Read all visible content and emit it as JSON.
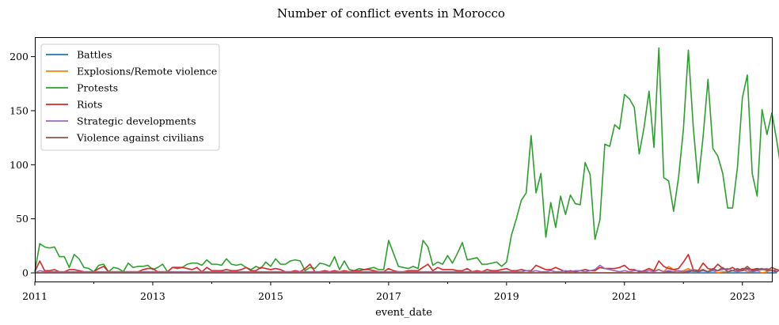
{
  "chart_data": {
    "type": "line",
    "title": "Number of conflict events in Morocco",
    "xlabel": "event_date",
    "ylabel": "",
    "x_start": "2011-01",
    "x_end": "2023-07",
    "xlim": [
      "2011-01",
      "2023-07"
    ],
    "ylim": [
      -8,
      218
    ],
    "xticks": [
      "2011",
      "2013",
      "2015",
      "2017",
      "2019",
      "2021",
      "2023"
    ],
    "yticks": [
      0,
      50,
      100,
      150,
      200
    ],
    "grid": false,
    "legend": "top-left",
    "series": [
      {
        "name": "Battles",
        "color": "#1f77b4",
        "values": [
          0,
          0,
          0,
          0,
          0,
          0,
          0,
          0,
          0,
          0,
          0,
          0,
          0,
          0,
          0,
          0,
          0,
          0,
          0,
          0,
          0,
          0,
          0,
          0,
          0,
          0,
          0,
          0,
          0,
          0,
          0,
          0,
          0,
          0,
          0,
          0,
          0,
          0,
          0,
          0,
          0,
          0,
          0,
          0,
          0,
          0,
          0,
          0,
          0,
          0,
          0,
          0,
          0,
          0,
          0,
          0,
          0,
          0,
          0,
          0,
          0,
          0,
          0,
          0,
          0,
          0,
          0,
          0,
          0,
          0,
          0,
          0,
          0,
          0,
          0,
          0,
          0,
          0,
          0,
          0,
          0,
          0,
          0,
          0,
          0,
          0,
          0,
          0,
          0,
          0,
          0,
          0,
          0,
          0,
          0,
          0,
          0,
          0,
          0,
          0,
          0,
          0,
          0,
          0,
          0,
          0,
          0,
          0,
          0,
          0,
          0,
          0,
          0,
          0,
          0,
          0,
          0,
          0,
          0,
          0,
          0,
          0,
          0,
          0,
          1,
          0,
          0,
          0,
          0,
          0,
          0,
          0,
          0,
          0,
          0,
          0,
          0,
          0,
          0,
          0,
          0,
          0,
          0,
          0,
          0,
          0,
          0,
          0,
          0,
          0,
          0,
          0
        ]
      },
      {
        "name": "Explosions/Remote violence",
        "color": "#ff7f0e",
        "values": [
          0,
          0,
          0,
          0,
          0,
          0,
          0,
          0,
          0,
          0,
          0,
          0,
          0,
          0,
          0,
          0,
          0,
          0,
          0,
          0,
          0,
          0,
          0,
          0,
          0,
          0,
          0,
          0,
          0,
          0,
          0,
          0,
          0,
          0,
          0,
          0,
          0,
          0,
          0,
          0,
          0,
          0,
          0,
          0,
          0,
          0,
          0,
          0,
          0,
          0,
          0,
          0,
          0,
          0,
          0,
          0,
          0,
          0,
          0,
          0,
          0,
          0,
          0,
          0,
          0,
          0,
          0,
          0,
          0,
          0,
          0,
          0,
          0,
          0,
          0,
          0,
          0,
          0,
          0,
          0,
          0,
          0,
          0,
          0,
          0,
          0,
          0,
          0,
          0,
          0,
          0,
          0,
          0,
          0,
          0,
          0,
          0,
          0,
          0,
          0,
          0,
          0,
          0,
          0,
          0,
          0,
          0,
          0,
          0,
          0,
          0,
          0,
          0,
          0,
          0,
          0,
          0,
          0,
          0,
          0,
          0,
          0,
          0,
          0,
          2,
          4,
          2,
          3,
          1,
          6,
          3,
          1,
          2,
          4,
          1,
          2,
          3,
          1,
          2,
          0,
          1,
          1,
          2,
          1,
          3,
          1,
          1,
          2,
          0,
          1,
          3,
          1
        ]
      },
      {
        "name": "Protests",
        "color": "#2ca02c",
        "values": [
          1,
          27,
          24,
          23,
          24,
          15,
          15,
          5,
          17,
          13,
          5,
          4,
          1,
          7,
          8,
          1,
          5,
          4,
          1,
          9,
          5,
          6,
          6,
          7,
          3,
          5,
          8,
          1,
          5,
          4,
          5,
          8,
          9,
          9,
          7,
          12,
          8,
          8,
          7,
          13,
          8,
          7,
          8,
          5,
          3,
          6,
          4,
          10,
          6,
          13,
          8,
          8,
          11,
          12,
          11,
          2,
          5,
          4,
          9,
          8,
          6,
          15,
          3,
          11,
          3,
          2,
          4,
          3,
          4,
          5,
          3,
          3,
          30,
          18,
          6,
          5,
          4,
          6,
          4,
          30,
          24,
          7,
          10,
          8,
          16,
          9,
          18,
          28,
          12,
          13,
          14,
          8,
          8,
          9,
          10,
          6,
          10,
          35,
          50,
          67,
          74,
          127,
          74,
          92,
          33,
          65,
          42,
          71,
          54,
          72,
          64,
          63,
          102,
          91,
          31,
          49,
          119,
          117,
          137,
          133,
          165,
          161,
          153,
          110,
          135,
          168,
          116,
          208,
          88,
          85,
          57,
          88,
          133,
          206,
          135,
          83,
          126,
          179,
          115,
          108,
          92,
          60,
          60,
          98,
          162,
          183,
          92,
          71,
          151,
          128,
          148,
          122,
          92,
          57,
          7
        ]
      },
      {
        "name": "Riots",
        "color": "#d62728",
        "values": [
          1,
          11,
          2,
          2,
          3,
          1,
          1,
          3,
          3,
          2,
          1,
          1,
          1,
          4,
          6,
          1,
          1,
          1,
          1,
          1,
          1,
          1,
          3,
          4,
          4,
          1,
          1,
          1,
          5,
          5,
          5,
          4,
          3,
          5,
          1,
          5,
          2,
          2,
          2,
          3,
          2,
          2,
          3,
          5,
          2,
          2,
          5,
          4,
          3,
          4,
          3,
          1,
          1,
          2,
          1,
          4,
          8,
          1,
          1,
          2,
          1,
          2,
          1,
          2,
          1,
          2,
          2,
          3,
          3,
          2,
          1,
          1,
          4,
          2,
          1,
          1,
          2,
          2,
          2,
          5,
          8,
          2,
          5,
          3,
          3,
          3,
          2,
          2,
          4,
          1,
          2,
          1,
          3,
          2,
          2,
          3,
          4,
          2,
          2,
          3,
          2,
          2,
          7,
          5,
          3,
          3,
          5,
          3,
          1,
          2,
          1,
          2,
          3,
          2,
          2,
          5,
          4,
          4,
          4,
          5,
          7,
          3,
          3,
          1,
          2,
          4,
          2,
          11,
          6,
          4,
          3,
          4,
          10,
          17,
          3,
          2,
          9,
          4,
          3,
          8,
          4,
          3,
          5,
          2,
          4,
          4,
          3,
          4,
          3,
          3,
          2,
          1,
          4,
          3,
          4,
          2,
          3
        ]
      },
      {
        "name": "Strategic developments",
        "color": "#9467bd",
        "values": [
          0,
          2,
          1,
          1,
          1,
          1,
          1,
          1,
          1,
          1,
          1,
          1,
          1,
          1,
          1,
          1,
          1,
          1,
          1,
          1,
          1,
          1,
          1,
          1,
          1,
          1,
          1,
          1,
          1,
          1,
          1,
          1,
          1,
          1,
          1,
          1,
          1,
          1,
          1,
          1,
          1,
          1,
          1,
          1,
          1,
          1,
          1,
          1,
          1,
          1,
          1,
          1,
          1,
          1,
          1,
          1,
          1,
          1,
          1,
          1,
          1,
          1,
          1,
          1,
          1,
          1,
          1,
          1,
          1,
          1,
          1,
          1,
          1,
          1,
          1,
          1,
          1,
          1,
          1,
          1,
          1,
          1,
          1,
          1,
          1,
          1,
          1,
          1,
          1,
          1,
          1,
          1,
          1,
          1,
          1,
          1,
          1,
          1,
          1,
          1,
          2,
          1,
          2,
          1,
          1,
          2,
          1,
          1,
          2,
          1,
          2,
          2,
          1,
          2,
          3,
          7,
          4,
          3,
          2,
          1,
          2,
          1,
          2,
          2,
          1,
          2,
          1,
          3,
          1,
          2,
          1,
          2,
          1,
          2,
          3,
          1,
          2,
          1,
          2,
          2,
          3,
          4,
          2,
          1,
          2,
          3,
          1,
          2,
          3,
          4,
          2,
          3,
          1,
          3,
          2,
          1,
          1,
          5
        ]
      },
      {
        "name": "Violence against civilians",
        "color": "#8c564b",
        "values": [
          0,
          0,
          0,
          0,
          0,
          0,
          0,
          0,
          0,
          0,
          0,
          0,
          0,
          0,
          0,
          0,
          0,
          0,
          0,
          0,
          0,
          0,
          0,
          0,
          0,
          0,
          0,
          0,
          0,
          0,
          0,
          0,
          0,
          0,
          0,
          0,
          0,
          0,
          0,
          0,
          0,
          0,
          0,
          0,
          0,
          0,
          0,
          0,
          0,
          0,
          0,
          0,
          0,
          0,
          0,
          0,
          0,
          0,
          0,
          0,
          0,
          0,
          0,
          0,
          0,
          0,
          0,
          0,
          0,
          0,
          0,
          0,
          0,
          0,
          0,
          0,
          0,
          0,
          0,
          0,
          0,
          0,
          0,
          0,
          0,
          0,
          0,
          0,
          0,
          0,
          0,
          0,
          0,
          0,
          0,
          0,
          0,
          0,
          0,
          0,
          0,
          0,
          0,
          0,
          0,
          0,
          0,
          0,
          0,
          0,
          0,
          0,
          0,
          0,
          0,
          0,
          0,
          0,
          0,
          0,
          0,
          0,
          0,
          0,
          0,
          0,
          0,
          0,
          0,
          1,
          0,
          0,
          0,
          1,
          2,
          1,
          3,
          1,
          4,
          2,
          5,
          1,
          2,
          4,
          2,
          6,
          2,
          3,
          4,
          2,
          5,
          3,
          2,
          4,
          2,
          1,
          3
        ]
      }
    ]
  }
}
